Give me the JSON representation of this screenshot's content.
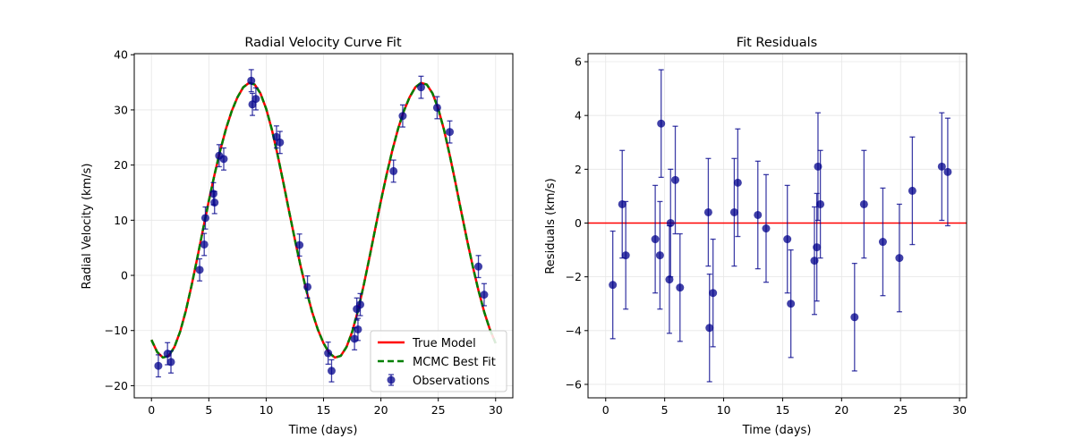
{
  "chart_data": [
    {
      "type": "scatter",
      "title": "Radial Velocity Curve Fit",
      "xlabel": "Time (days)",
      "ylabel": "Radial Velocity (km/s)",
      "xlim": [
        -1.5,
        31.5
      ],
      "ylim": [
        -22.2,
        40.2
      ],
      "xticks": [
        0,
        5,
        10,
        15,
        20,
        25,
        30
      ],
      "yticks": [
        -20,
        -10,
        0,
        10,
        20,
        30,
        40
      ],
      "grid": true,
      "legend_position": "bottom-right",
      "legend": [
        "True Model",
        "MCMC Best Fit",
        "Observations"
      ],
      "series": [
        {
          "name": "True Model",
          "kind": "line",
          "color": "#ff0000",
          "x": [
            0.0,
            0.5,
            1.0,
            1.5,
            2.0,
            2.5,
            3.0,
            3.5,
            4.0,
            4.5,
            5.0,
            5.5,
            6.0,
            6.5,
            7.0,
            7.5,
            8.0,
            8.5,
            9.0,
            9.5,
            10.0,
            10.5,
            11.0,
            11.5,
            12.0,
            12.5,
            13.0,
            13.5,
            14.0,
            14.5,
            15.0,
            15.5,
            16.0,
            16.5,
            17.0,
            17.5,
            18.0,
            18.5,
            19.0,
            19.5,
            20.0,
            20.5,
            21.0,
            21.5,
            22.0,
            22.5,
            23.0,
            23.5,
            24.0,
            24.5,
            25.0,
            25.5,
            26.0,
            26.5,
            27.0,
            27.5,
            28.0,
            28.5,
            29.0,
            29.5,
            30.0
          ],
          "y": [
            -11.7,
            -13.9,
            -14.9,
            -14.6,
            -13.0,
            -10.2,
            -6.4,
            -1.8,
            3.2,
            8.4,
            13.5,
            18.3,
            22.7,
            26.6,
            29.8,
            32.3,
            34.1,
            34.9,
            34.6,
            33.0,
            30.2,
            26.4,
            21.8,
            16.8,
            11.6,
            6.5,
            1.7,
            -2.7,
            -6.6,
            -9.8,
            -12.3,
            -14.1,
            -14.9,
            -14.6,
            -13.0,
            -10.2,
            -6.4,
            -1.8,
            3.2,
            8.4,
            13.5,
            18.3,
            22.7,
            26.6,
            29.8,
            32.3,
            34.1,
            34.9,
            34.6,
            33.0,
            30.2,
            26.4,
            21.8,
            16.8,
            11.6,
            6.5,
            1.7,
            -2.7,
            -6.6,
            -9.8,
            -12.3
          ]
        },
        {
          "name": "MCMC Best Fit",
          "kind": "line",
          "color": "#008000",
          "x": [
            0.0,
            0.5,
            1.0,
            1.5,
            2.0,
            2.5,
            3.0,
            3.5,
            4.0,
            4.5,
            5.0,
            5.5,
            6.0,
            6.5,
            7.0,
            7.5,
            8.0,
            8.5,
            9.0,
            9.5,
            10.0,
            10.5,
            11.0,
            11.5,
            12.0,
            12.5,
            13.0,
            13.5,
            14.0,
            14.5,
            15.0,
            15.5,
            16.0,
            16.5,
            17.0,
            17.5,
            18.0,
            18.5,
            19.0,
            19.5,
            20.0,
            20.5,
            21.0,
            21.5,
            22.0,
            22.5,
            23.0,
            23.5,
            24.0,
            24.5,
            25.0,
            25.5,
            26.0,
            26.5,
            27.0,
            27.5,
            28.0,
            28.5,
            29.0,
            29.5,
            30.0
          ],
          "y": [
            -11.7,
            -13.9,
            -14.9,
            -14.6,
            -13.0,
            -10.2,
            -6.4,
            -1.8,
            3.2,
            8.4,
            13.5,
            18.3,
            22.7,
            26.6,
            29.8,
            32.3,
            34.1,
            34.9,
            34.6,
            33.0,
            30.2,
            26.4,
            21.8,
            16.8,
            11.6,
            6.5,
            1.7,
            -2.7,
            -6.6,
            -9.8,
            -12.3,
            -14.1,
            -14.9,
            -14.6,
            -13.0,
            -10.2,
            -6.4,
            -1.8,
            3.2,
            8.4,
            13.5,
            18.3,
            22.7,
            26.6,
            29.8,
            32.3,
            34.1,
            34.9,
            34.6,
            33.0,
            30.2,
            26.4,
            21.8,
            16.8,
            11.6,
            6.5,
            1.7,
            -2.7,
            -6.6,
            -9.8,
            -12.3
          ]
        },
        {
          "name": "Observations",
          "kind": "errorbar",
          "color": "#00008b",
          "yerr": 2.0,
          "x": [
            0.6,
            1.4,
            1.7,
            4.2,
            4.6,
            4.7,
            5.4,
            5.5,
            5.9,
            6.3,
            8.7,
            8.8,
            9.1,
            10.9,
            11.2,
            12.9,
            13.6,
            15.4,
            15.7,
            17.7,
            17.9,
            18.0,
            18.2,
            21.1,
            21.9,
            23.5,
            24.9,
            26.0,
            28.5,
            29.0
          ],
          "y": [
            -16.4,
            -14.2,
            -15.7,
            1.0,
            5.6,
            10.4,
            14.8,
            13.2,
            21.7,
            21.1,
            35.3,
            31.0,
            32.0,
            25.1,
            24.1,
            5.5,
            -2.1,
            -14.1,
            -17.3,
            -11.5,
            -6.1,
            -9.8,
            -5.3,
            18.9,
            28.9,
            34.1,
            30.4,
            26.0,
            1.6,
            -3.5
          ]
        }
      ]
    },
    {
      "type": "scatter",
      "title": "Fit Residuals",
      "xlabel": "Time (days)",
      "ylabel": "Residuals (km/s)",
      "xlim": [
        -1.5,
        30.6
      ],
      "ylim": [
        -6.5,
        6.3
      ],
      "xticks": [
        0,
        5,
        10,
        15,
        20,
        25,
        30
      ],
      "yticks": [
        -6,
        -4,
        -2,
        0,
        2,
        4,
        6
      ],
      "grid": true,
      "reference_line": {
        "y": 0,
        "color": "#ff0000"
      },
      "series": [
        {
          "kind": "errorbar",
          "color": "#00008b",
          "yerr": 2.0,
          "x": [
            0.6,
            1.4,
            1.7,
            4.2,
            4.6,
            4.7,
            5.4,
            5.5,
            5.9,
            6.3,
            8.7,
            8.8,
            9.1,
            10.9,
            11.2,
            12.9,
            13.6,
            15.4,
            15.7,
            17.7,
            17.9,
            18.0,
            18.2,
            21.1,
            21.9,
            23.5,
            24.9,
            26.0,
            28.5,
            29.0
          ],
          "y": [
            -2.3,
            0.7,
            -1.2,
            -0.6,
            -1.2,
            3.7,
            -2.1,
            0.0,
            1.6,
            -2.4,
            0.4,
            -3.9,
            -2.6,
            0.4,
            1.5,
            0.3,
            -0.2,
            -0.6,
            -3.0,
            -1.4,
            -0.9,
            2.1,
            0.7,
            -3.5,
            0.7,
            -0.7,
            -1.3,
            1.2,
            2.1,
            1.9
          ]
        }
      ]
    }
  ]
}
